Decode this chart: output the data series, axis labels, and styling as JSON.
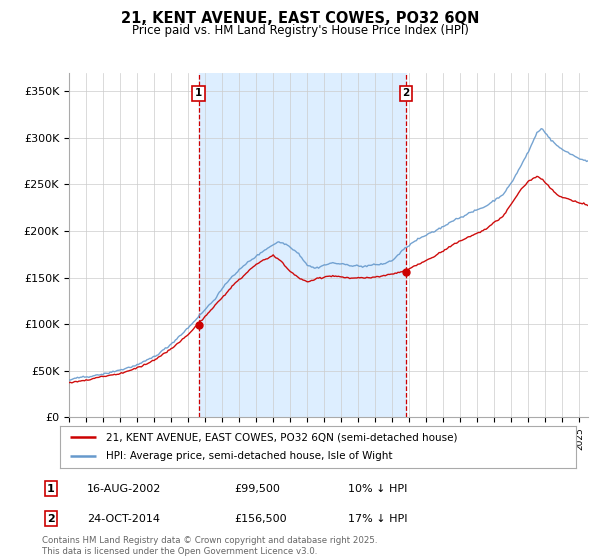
{
  "title": "21, KENT AVENUE, EAST COWES, PO32 6QN",
  "subtitle": "Price paid vs. HM Land Registry's House Price Index (HPI)",
  "ylabel_ticks": [
    "£0",
    "£50K",
    "£100K",
    "£150K",
    "£200K",
    "£250K",
    "£300K",
    "£350K"
  ],
  "ytick_values": [
    0,
    50000,
    100000,
    150000,
    200000,
    250000,
    300000,
    350000
  ],
  "ylim": [
    0,
    370000
  ],
  "legend_line1": "21, KENT AVENUE, EAST COWES, PO32 6QN (semi-detached house)",
  "legend_line2": "HPI: Average price, semi-detached house, Isle of Wight",
  "sale1_date": "16-AUG-2002",
  "sale1_price": "£99,500",
  "sale1_hpi": "10% ↓ HPI",
  "sale2_date": "24-OCT-2014",
  "sale2_price": "£156,500",
  "sale2_hpi": "17% ↓ HPI",
  "footnote": "Contains HM Land Registry data © Crown copyright and database right 2025.\nThis data is licensed under the Open Government Licence v3.0.",
  "line_color_sold": "#cc0000",
  "line_color_hpi": "#6699cc",
  "vline_color": "#cc0000",
  "shade_color": "#ddeeff",
  "background_color": "#ffffff",
  "plot_bg_color": "#ffffff",
  "grid_color": "#cccccc",
  "sale1_x_year": 2002.62,
  "sale2_x_year": 2014.81,
  "xlim_start": 1995.0,
  "xlim_end": 2025.5,
  "hpi_seed": 42,
  "sold_seed": 123
}
